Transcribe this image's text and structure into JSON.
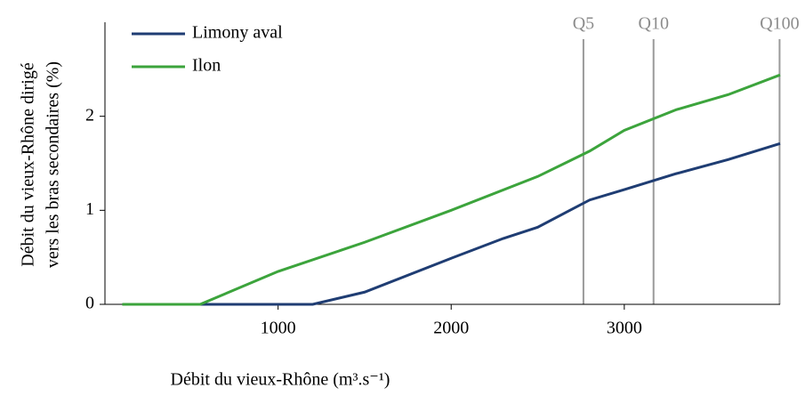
{
  "chart_data": {
    "type": "line",
    "ylabel": [
      "Débit du vieux-Rhône dirigé",
      "vers les bras secondaires (%)"
    ],
    "xlabel": "Débit du vieux-Rhône (m³.s⁻¹)",
    "xlim": [
      0,
      3900
    ],
    "xticks": [
      1000,
      2000,
      3000
    ],
    "ylim": [
      0,
      3
    ],
    "yticks": [
      0,
      1,
      2
    ],
    "legend": "upper left",
    "annotations": [
      {
        "label": "Q5",
        "x": 2764
      },
      {
        "label": "Q10",
        "x": 3169
      },
      {
        "label": "Q100",
        "x": 3897
      }
    ],
    "series": [
      {
        "name": "Limony aval",
        "color": "#1f3d73",
        "x": [
          100,
          1200,
          1500,
          2000,
          2300,
          2500,
          2800,
          3000,
          3300,
          3600,
          3900
        ],
        "values": [
          0,
          0,
          0.13,
          0.49,
          0.7,
          0.82,
          1.11,
          1.22,
          1.39,
          1.54,
          1.71
        ]
      },
      {
        "name": "Ilon",
        "color": "#3ca43c",
        "x": [
          100,
          550,
          1000,
          1500,
          2000,
          2500,
          2800,
          3000,
          3300,
          3600,
          3900
        ],
        "values": [
          0,
          0,
          0.35,
          0.66,
          1.0,
          1.36,
          1.63,
          1.85,
          2.07,
          2.23,
          2.44
        ]
      }
    ]
  }
}
